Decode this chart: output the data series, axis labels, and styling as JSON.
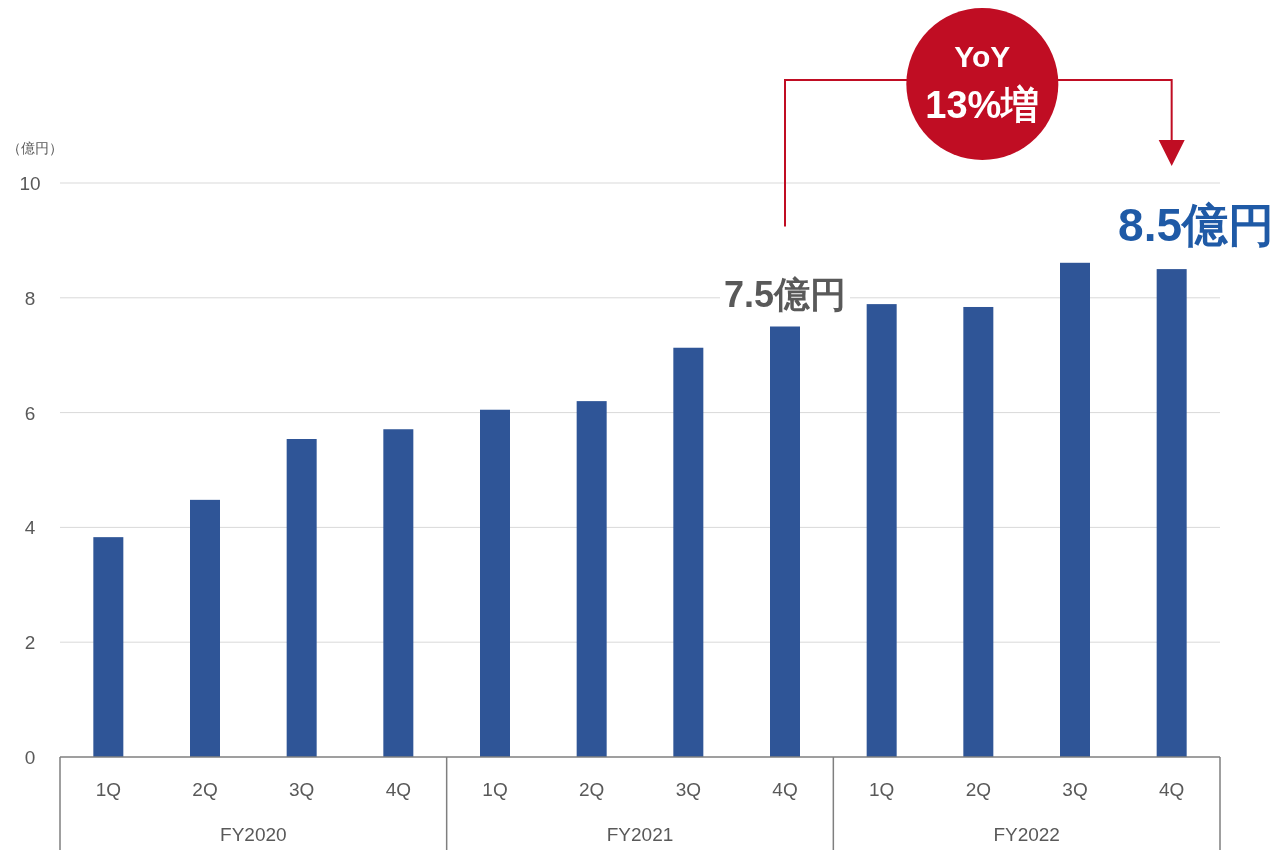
{
  "chart_data": {
    "type": "bar",
    "ylabel": "（億円）",
    "categories": [
      "1Q",
      "2Q",
      "3Q",
      "4Q",
      "1Q",
      "2Q",
      "3Q",
      "4Q",
      "1Q",
      "2Q",
      "3Q",
      "4Q"
    ],
    "values": [
      3.83,
      4.48,
      5.54,
      5.71,
      6.05,
      6.2,
      7.13,
      7.5,
      7.89,
      7.84,
      8.61,
      8.5
    ],
    "value_labels": [
      null,
      null,
      null,
      null,
      null,
      null,
      null,
      "7.5億円",
      null,
      null,
      null,
      "8.5億円"
    ],
    "color": "#2f5597",
    "ylim": [
      0,
      10
    ],
    "yticks": [
      0,
      2,
      4,
      6,
      8,
      10
    ],
    "grid": "y",
    "annotations": [
      "FY2020",
      "FY2021",
      "FY2022",
      "YoY 13%増"
    ]
  }
}
